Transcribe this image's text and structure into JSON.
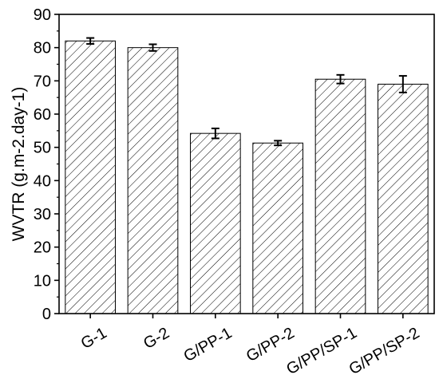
{
  "chart_data": {
    "type": "bar",
    "title": "",
    "xlabel": "",
    "ylabel": "WVTR (g.m-2.day-1)",
    "ylim": [
      0,
      90
    ],
    "yticks": [
      "0",
      "10",
      "20",
      "30",
      "40",
      "50",
      "60",
      "70",
      "80",
      "90"
    ],
    "categories": [
      "G-1",
      "G-2",
      "G/PP-1",
      "G/PP-2",
      "G/PP/SP-1",
      "G/PP/SP-2"
    ],
    "values": [
      82.0,
      80.0,
      54.2,
      51.3,
      70.5,
      69.0
    ],
    "errors": [
      0.9,
      1.0,
      1.5,
      0.7,
      1.3,
      2.5
    ],
    "bar_pattern": "diagonal-hatch",
    "grid": false,
    "legend": "none"
  }
}
